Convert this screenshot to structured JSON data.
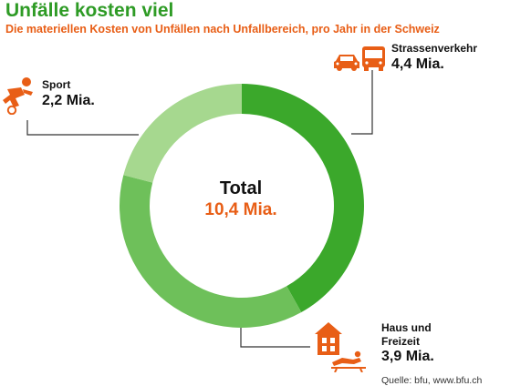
{
  "header": {
    "title": "Unfälle kosten viel",
    "subtitle": "Die materiellen Kosten von Unfällen nach Unfallbereich, pro Jahr in der Schweiz"
  },
  "center": {
    "label": "Total",
    "value": "10,4 Mia."
  },
  "labels": {
    "strassenverkehr": {
      "name": "Strassenverkehr",
      "value": "4,4 Mia.",
      "icons": [
        "car-icon",
        "bus-icon"
      ]
    },
    "haus_freizeit": {
      "name_line1": "Haus und",
      "name_line2": "Freizeit",
      "value": "3,9 Mia.",
      "icons": [
        "house-icon",
        "lounger-icon"
      ]
    },
    "sport": {
      "name": "Sport",
      "value": "2,2 Mia.",
      "icons": [
        "soccer-player-icon"
      ]
    }
  },
  "source": "Quelle: bfu, www.bfu.ch",
  "colors": {
    "title": "#2e9b25",
    "accent": "#e85e16",
    "strassenverkehr": "#3ba82b",
    "haus_freizeit": "#6ec05a",
    "sport": "#a6d88f",
    "leader": "#333333"
  },
  "chart_data": {
    "type": "pie",
    "donut": true,
    "unit": "Mia.",
    "total": 10.4,
    "slices": [
      {
        "label": "Strassenverkehr",
        "value": 4.4
      },
      {
        "label": "Haus und Freizeit",
        "value": 3.9
      },
      {
        "label": "Sport",
        "value": 2.2
      }
    ]
  }
}
